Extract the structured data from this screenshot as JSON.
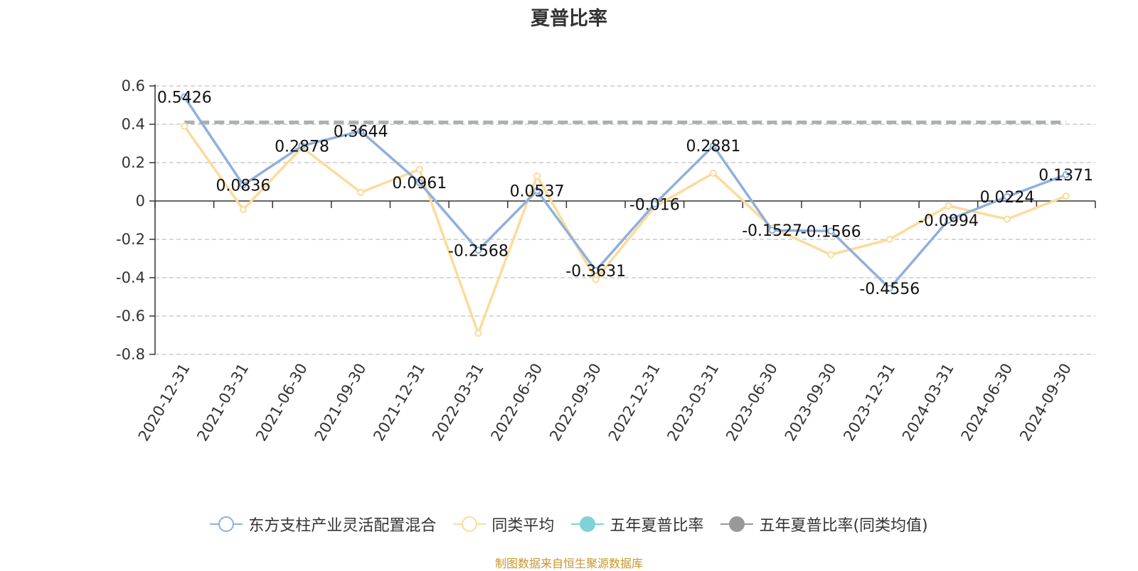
{
  "chart_data": {
    "type": "line",
    "title": "夏普比率",
    "categories": [
      "2020-12-31",
      "2021-03-31",
      "2021-06-30",
      "2021-09-30",
      "2021-12-31",
      "2022-03-31",
      "2022-06-30",
      "2022-09-30",
      "2022-12-31",
      "2023-03-31",
      "2023-06-30",
      "2023-09-30",
      "2023-12-31",
      "2024-03-31",
      "2024-06-30",
      "2024-09-30"
    ],
    "y_ticks": [
      "0.6",
      "0.4",
      "0.2",
      "0",
      "-0.2",
      "-0.4",
      "-0.6",
      "-0.8"
    ],
    "ylim": [
      -0.8,
      0.6
    ],
    "grid": true,
    "legend_position": "bottom",
    "series": [
      {
        "name": "东方支柱产业灵活配置混合",
        "color": "#8fb0dc",
        "values": [
          0.5426,
          0.0836,
          0.2878,
          0.3644,
          0.0961,
          -0.2568,
          0.0537,
          -0.3631,
          -0.016,
          0.2881,
          -0.1527,
          -0.1566,
          -0.4556,
          -0.0994,
          0.0224,
          0.1371
        ],
        "labels": [
          "0.5426",
          "0.0836",
          "0.2878",
          "0.3644",
          "0.0961",
          "-0.2568",
          "0.0537",
          "-0.3631",
          "-0.016",
          "0.2881",
          "-0.1527",
          "-0.1566",
          "-0.4556",
          "-0.0994",
          "0.0224",
          "0.1371"
        ]
      },
      {
        "name": "同类平均",
        "color": "#fcdb9a",
        "values": [
          0.39,
          -0.045,
          0.28,
          0.045,
          0.165,
          -0.69,
          0.13,
          -0.41,
          -0.03,
          0.145,
          -0.14,
          -0.28,
          -0.2,
          -0.025,
          -0.095,
          0.025
        ]
      },
      {
        "name": "五年夏普比率",
        "color": "#7fd3d8"
      },
      {
        "name": "五年夏普比率(同类均值)",
        "color": "#a8b0b0",
        "value": 0.41
      }
    ]
  },
  "legend": [
    {
      "label": "东方支柱产业灵活配置混合",
      "color": "#8fb0dc",
      "marker": "hollow"
    },
    {
      "label": "同类平均",
      "color": "#fcdb9a",
      "marker": "hollow"
    },
    {
      "label": "五年夏普比率",
      "color": "#7fd3d8",
      "marker": "filled"
    },
    {
      "label": "五年夏普比率(同类均值)",
      "color": "#999999",
      "marker": "filled"
    }
  ],
  "source_note": "制图数据来自恒生聚源数据库"
}
